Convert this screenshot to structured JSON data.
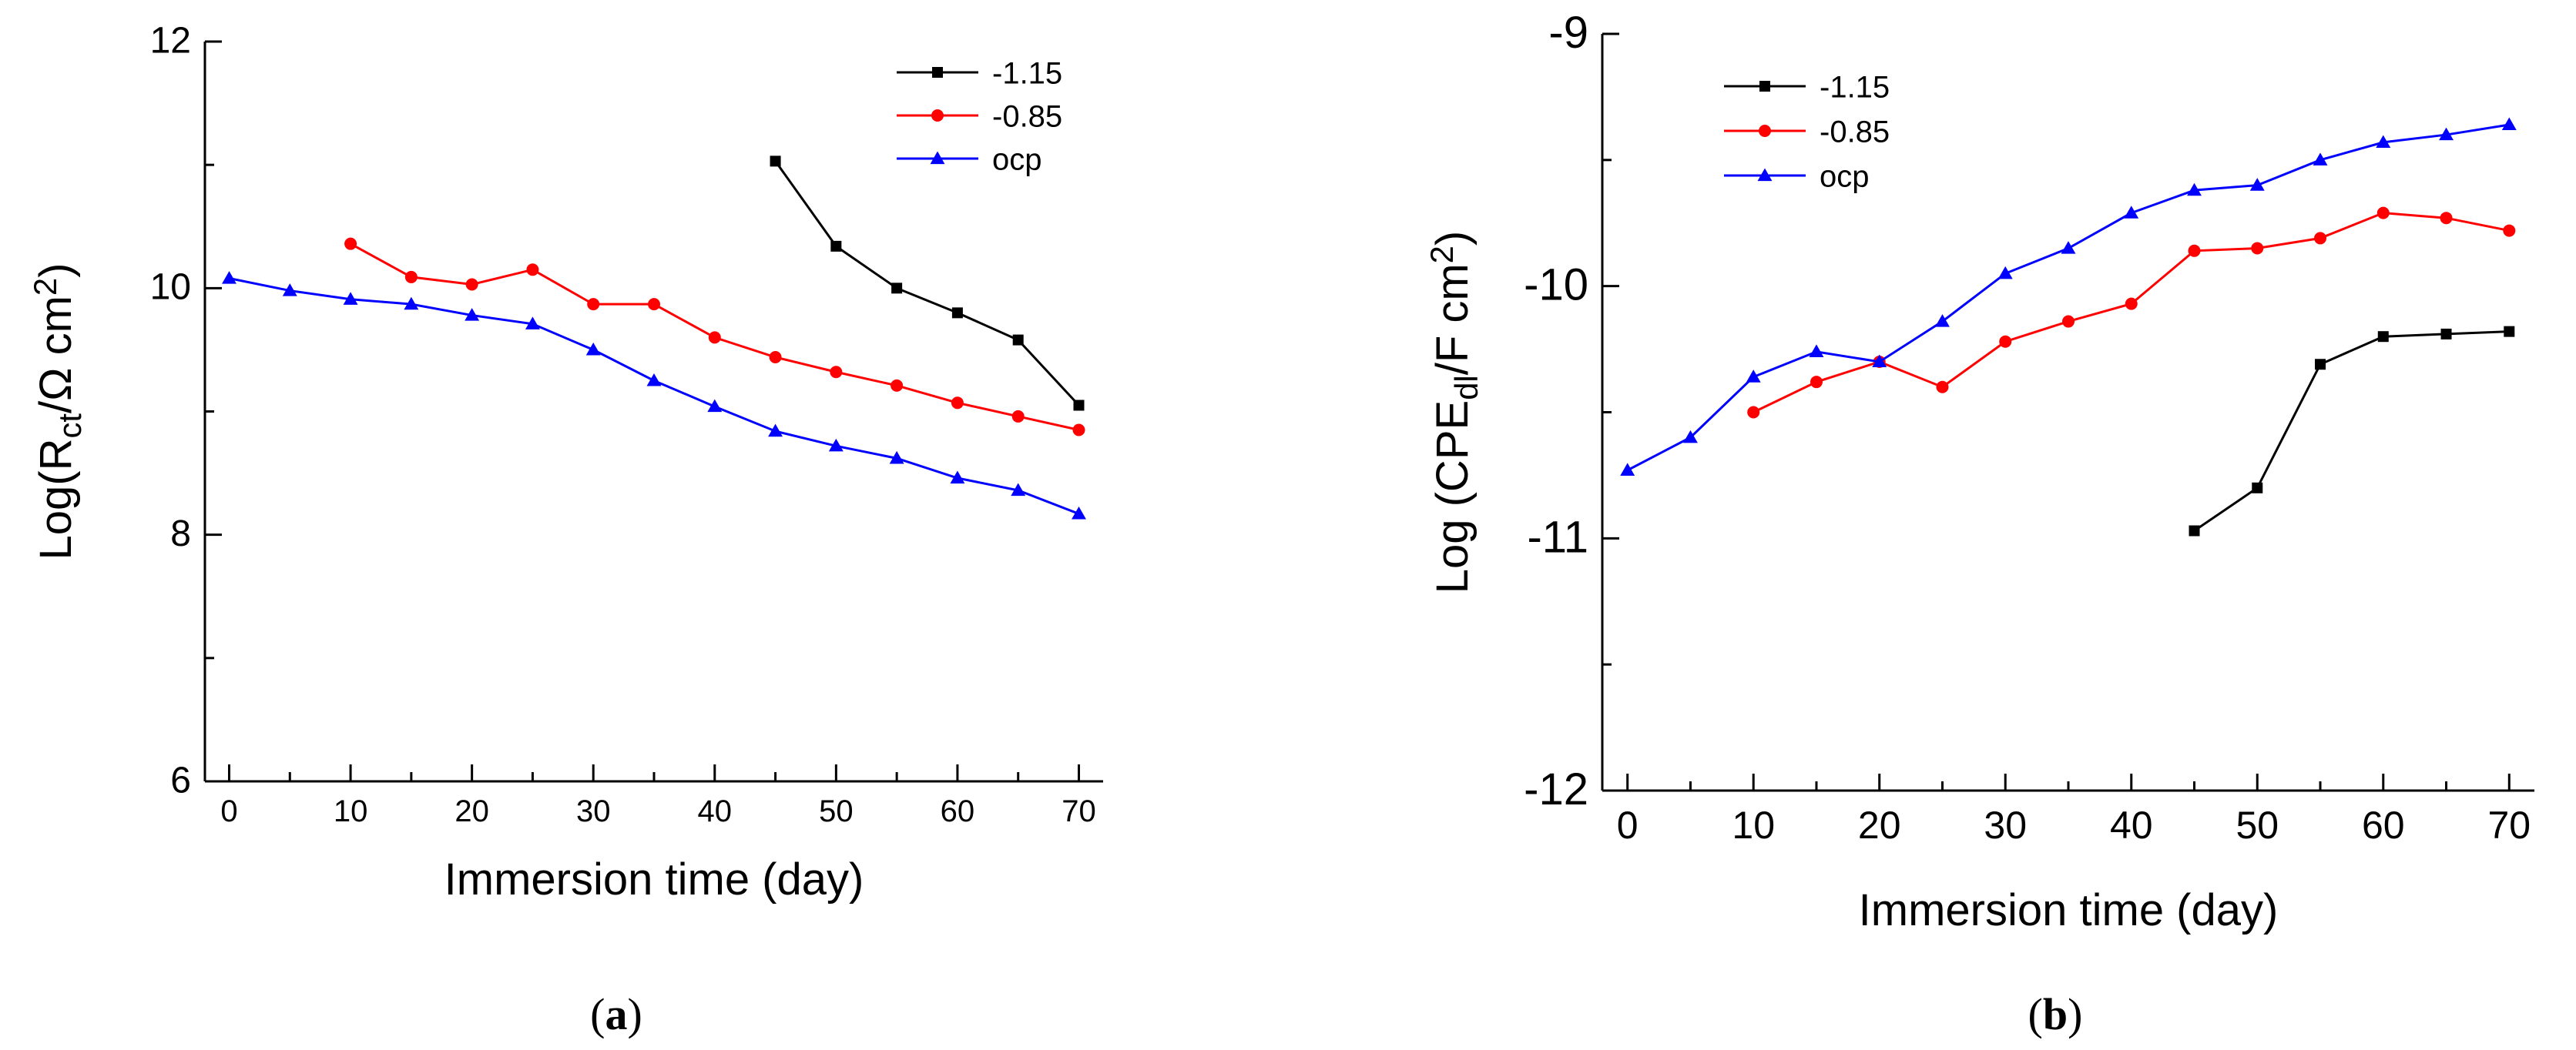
{
  "chart_data": [
    {
      "type": "line",
      "panel_label": "a",
      "xlabel": "Immersion time (day)",
      "ylabel": {
        "prefix": "Log(R",
        "sub": "ct",
        "mid": "/Ω cm",
        "sup": "2",
        "suffix": ")"
      },
      "xlim": [
        -2,
        72
      ],
      "ylim": [
        6,
        12
      ],
      "x_ticks": [
        0,
        10,
        20,
        30,
        40,
        50,
        60,
        70
      ],
      "y_ticks": [
        6,
        8,
        10,
        12
      ],
      "y_minor_ticks": [
        7,
        9,
        11
      ],
      "legend_position": "top-right",
      "series": [
        {
          "name": "-1.15",
          "color": "#000000",
          "marker": "square",
          "x": [
            45,
            50,
            55,
            60,
            65,
            70
          ],
          "y": [
            11.03,
            10.34,
            10.0,
            9.8,
            9.58,
            9.05
          ]
        },
        {
          "name": "-0.85",
          "color": "#ff0000",
          "marker": "circle",
          "x": [
            10,
            15,
            20,
            25,
            30,
            35,
            40,
            45,
            50,
            55,
            60,
            65,
            70
          ],
          "y": [
            10.36,
            10.09,
            10.03,
            10.15,
            9.87,
            9.87,
            9.6,
            9.44,
            9.32,
            9.21,
            9.07,
            8.96,
            8.85
          ]
        },
        {
          "name": "ocp",
          "color": "#0000ff",
          "marker": "triangle",
          "x": [
            0,
            5,
            10,
            15,
            20,
            25,
            30,
            35,
            40,
            45,
            50,
            55,
            60,
            65,
            70
          ],
          "y": [
            10.08,
            9.98,
            9.91,
            9.87,
            9.78,
            9.71,
            9.5,
            9.25,
            9.04,
            8.84,
            8.72,
            8.62,
            8.46,
            8.36,
            8.17
          ]
        }
      ]
    },
    {
      "type": "line",
      "panel_label": "b",
      "xlabel": "Immersion time (day)",
      "ylabel": {
        "prefix": "Log (CPE",
        "sub": "dl",
        "mid": "/F cm",
        "sup": "2",
        "suffix": ")"
      },
      "xlim": [
        -2,
        72
      ],
      "ylim": [
        -12,
        -9
      ],
      "x_ticks": [
        0,
        10,
        20,
        30,
        40,
        50,
        60,
        70
      ],
      "y_ticks": [
        -12,
        -11,
        -10,
        -9
      ],
      "y_minor_ticks": [
        -11.5,
        -10.5,
        -9.5
      ],
      "legend_position": "top-left",
      "series": [
        {
          "name": "-1.15",
          "color": "#000000",
          "marker": "square",
          "x": [
            45,
            50,
            55,
            60,
            65,
            70
          ],
          "y": [
            -10.97,
            -10.8,
            -10.31,
            -10.2,
            -10.19,
            -10.18
          ]
        },
        {
          "name": "-0.85",
          "color": "#ff0000",
          "marker": "circle",
          "x": [
            10,
            15,
            20,
            25,
            30,
            35,
            40,
            45,
            50,
            55,
            60,
            65,
            70
          ],
          "y": [
            -10.5,
            -10.38,
            -10.3,
            -10.4,
            -10.22,
            -10.14,
            -10.07,
            -9.86,
            -9.85,
            -9.81,
            -9.71,
            -9.73,
            -9.78
          ]
        },
        {
          "name": "ocp",
          "color": "#0000ff",
          "marker": "triangle",
          "x": [
            0,
            5,
            10,
            15,
            20,
            25,
            30,
            35,
            40,
            45,
            50,
            55,
            60,
            65,
            70
          ],
          "y": [
            -10.73,
            -10.6,
            -10.36,
            -10.26,
            -10.3,
            -10.14,
            -9.95,
            -9.85,
            -9.71,
            -9.62,
            -9.6,
            -9.5,
            -9.43,
            -9.4,
            -9.36
          ]
        }
      ]
    }
  ]
}
